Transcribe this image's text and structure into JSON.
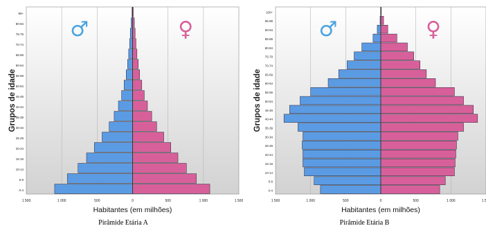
{
  "chart_data": [
    {
      "type": "bar",
      "title": "Pirâmide Etária A",
      "xlabel": "Habitantes (em milhões)",
      "ylabel": "Grupos de idade",
      "xlim": [
        -1500,
        1500
      ],
      "x_tick_labels": [
        "1 500",
        "1 000",
        "500",
        "0",
        "500",
        "1 000",
        "1 500"
      ],
      "categories": [
        "0-4",
        "5-9",
        "10-14",
        "15-19",
        "20-24",
        "25-29",
        "30-34",
        "35-39",
        "40-44",
        "45-49",
        "50-54",
        "55-59",
        "60-64",
        "65-69",
        "70-74",
        "75-79",
        "80-84",
        "85+"
      ],
      "series": [
        {
          "name": "♂",
          "color": "#5b9be3",
          "values": [
            1100,
            920,
            770,
            650,
            540,
            430,
            330,
            260,
            200,
            155,
            120,
            90,
            70,
            55,
            42,
            32,
            20,
            8
          ]
        },
        {
          "name": "♀",
          "color": "#d8609a",
          "values": [
            1090,
            900,
            760,
            640,
            540,
            440,
            340,
            270,
            210,
            165,
            130,
            100,
            80,
            62,
            48,
            36,
            25,
            10
          ]
        }
      ],
      "grid": true,
      "legend_symbols": [
        "♂",
        "♀"
      ]
    },
    {
      "type": "bar",
      "title": "Pirâmide Etária B",
      "xlabel": "Habitantes (em milhões)",
      "ylabel": "Grupos de idade",
      "xlim": [
        -1500,
        1500
      ],
      "x_tick_labels": [
        "1 500",
        "1 000",
        "500",
        "0",
        "500",
        "1 000",
        "1 500"
      ],
      "categories": [
        "0-4",
        "5-9",
        "10-14",
        "15-19",
        "20-24",
        "25-29",
        "30-34",
        "35-39",
        "40-44",
        "45-49",
        "50-54",
        "55-59",
        "60-64",
        "65-69",
        "70-74",
        "75-79",
        "80-84",
        "85-89",
        "90-94",
        "95-99",
        "100+"
      ],
      "series": [
        {
          "name": "♂",
          "color": "#5b9be3",
          "values": [
            860,
            950,
            1090,
            1110,
            1110,
            1120,
            1110,
            1180,
            1380,
            1300,
            1150,
            1000,
            750,
            600,
            480,
            380,
            270,
            110,
            50,
            10,
            3
          ]
        },
        {
          "name": "♀",
          "color": "#d8609a",
          "values": [
            840,
            920,
            1050,
            1060,
            1070,
            1080,
            1100,
            1180,
            1380,
            1320,
            1180,
            1050,
            780,
            650,
            560,
            470,
            380,
            230,
            100,
            40,
            8
          ]
        }
      ],
      "grid": true,
      "legend_symbols": [
        "♂",
        "♀"
      ]
    }
  ]
}
